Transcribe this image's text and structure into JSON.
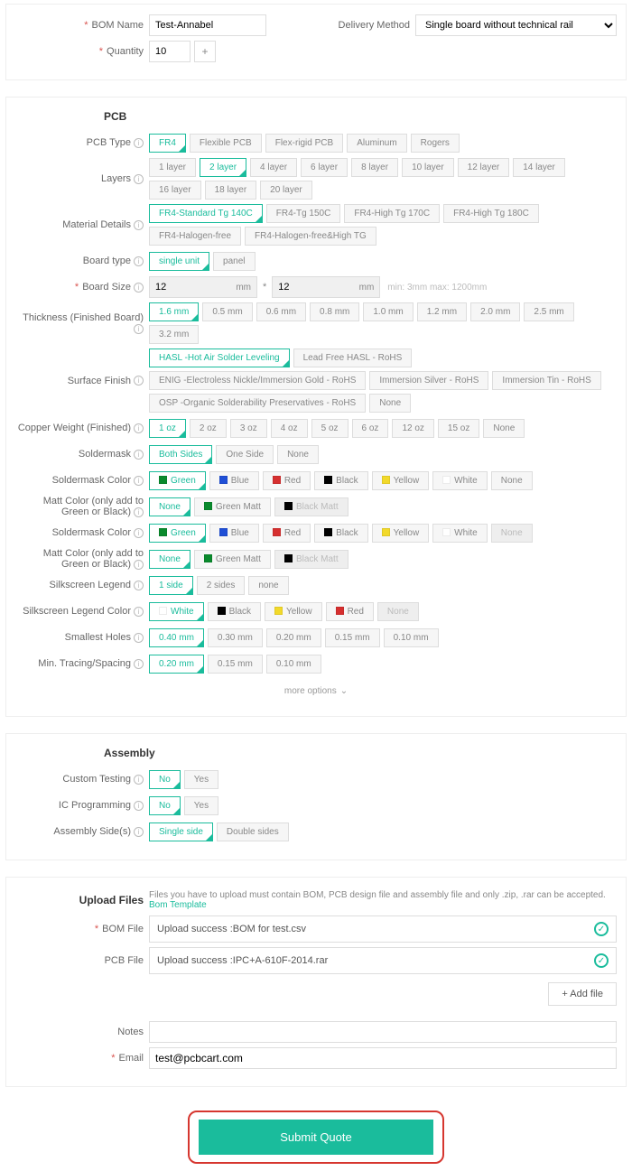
{
  "colors": {
    "accent": "#1abc9c",
    "danger": "#d6362f"
  },
  "top": {
    "bomName": {
      "label": "BOM Name",
      "required": true,
      "value": "Test-Annabel"
    },
    "quantity": {
      "label": "Quantity",
      "required": true,
      "value": "10",
      "plus": "+"
    },
    "delivery": {
      "label": "Delivery Method",
      "value": "Single board without technical rail"
    }
  },
  "pcb": {
    "heading": "PCB",
    "pcbType": {
      "label": "PCB Type",
      "selected": 0,
      "options": [
        "FR4",
        "Flexible PCB",
        "Flex-rigid PCB",
        "Aluminum",
        "Rogers"
      ]
    },
    "layers": {
      "label": "Layers",
      "selected": 1,
      "options": [
        "1 layer",
        "2 layer",
        "4 layer",
        "6 layer",
        "8 layer",
        "10 layer",
        "12 layer",
        "14 layer",
        "16 layer",
        "18 layer",
        "20 layer"
      ]
    },
    "material": {
      "label": "Material Details",
      "selected": 0,
      "options": [
        "FR4-Standard Tg 140C",
        "FR4-Tg 150C",
        "FR4-High Tg 170C",
        "FR4-High Tg 180C",
        "FR4-Halogen-free",
        "FR4-Halogen-free&High TG"
      ]
    },
    "boardType": {
      "label": "Board type",
      "selected": 0,
      "options": [
        "single unit",
        "panel"
      ]
    },
    "boardSize": {
      "label": "Board Size",
      "required": true,
      "w": "12",
      "h": "12",
      "unit": "mm",
      "sep": "*",
      "hint": "min: 3mm max: 1200mm"
    },
    "thickness": {
      "label": "Thickness (Finished Board)",
      "selected": 0,
      "options": [
        "1.6 mm",
        "0.5 mm",
        "0.6 mm",
        "0.8 mm",
        "1.0 mm",
        "1.2 mm",
        "2.0 mm",
        "2.5 mm",
        "3.2 mm"
      ]
    },
    "surface": {
      "label": "Surface Finish",
      "selected": 0,
      "options": [
        "HASL -Hot Air Solder Leveling",
        "Lead Free HASL - RoHS",
        "ENIG -Electroless Nickle/Immersion Gold - RoHS",
        "Immersion Silver - RoHS",
        "Immersion Tin - RoHS",
        "OSP -Organic Solderability Preservatives - RoHS",
        "None"
      ]
    },
    "copper": {
      "label": "Copper Weight (Finished)",
      "selected": 0,
      "options": [
        "1 oz",
        "2 oz",
        "3 oz",
        "4 oz",
        "5 oz",
        "6 oz",
        "12 oz",
        "15 oz",
        "None"
      ]
    },
    "soldermask": {
      "label": "Soldermask",
      "selected": 0,
      "options": [
        "Both Sides",
        "One Side",
        "None"
      ]
    },
    "smColor1": {
      "label": "Soldermask Color",
      "selected": 0,
      "options": [
        {
          "label": "Green",
          "swatch": "#0a8a2d"
        },
        {
          "label": "Blue",
          "swatch": "#1f4fd6"
        },
        {
          "label": "Red",
          "swatch": "#d62f2f"
        },
        {
          "label": "Black",
          "swatch": "#000000"
        },
        {
          "label": "Yellow",
          "swatch": "#f2d92a"
        },
        {
          "label": "White",
          "swatch": "#ffffff"
        },
        {
          "label": "None",
          "swatch": null
        }
      ]
    },
    "matt1": {
      "label": "Matt Color (only add to Green or Black)",
      "selected": 0,
      "options": [
        {
          "label": "None",
          "swatch": null
        },
        {
          "label": "Green Matt",
          "swatch": "#0a8a2d"
        },
        {
          "label": "Black Matt",
          "swatch": "#000000",
          "disabled": true
        }
      ]
    },
    "smColor2": {
      "label": "Soldermask Color",
      "selected": 0,
      "options": [
        {
          "label": "Green",
          "swatch": "#0a8a2d"
        },
        {
          "label": "Blue",
          "swatch": "#1f4fd6"
        },
        {
          "label": "Red",
          "swatch": "#d62f2f"
        },
        {
          "label": "Black",
          "swatch": "#000000"
        },
        {
          "label": "Yellow",
          "swatch": "#f2d92a"
        },
        {
          "label": "White",
          "swatch": "#ffffff"
        },
        {
          "label": "None",
          "swatch": null,
          "disabled": true
        }
      ]
    },
    "matt2": {
      "label": "Matt Color (only add to Green or Black)",
      "selected": 0,
      "options": [
        {
          "label": "None",
          "swatch": null
        },
        {
          "label": "Green Matt",
          "swatch": "#0a8a2d"
        },
        {
          "label": "Black Matt",
          "swatch": "#000000",
          "disabled": true
        }
      ]
    },
    "silk": {
      "label": "Silkscreen Legend",
      "selected": 0,
      "options": [
        "1 side",
        "2 sides",
        "none"
      ]
    },
    "silkColor": {
      "label": "Silkscreen Legend Color",
      "selected": 0,
      "options": [
        {
          "label": "White",
          "swatch": "#ffffff"
        },
        {
          "label": "Black",
          "swatch": "#000000"
        },
        {
          "label": "Yellow",
          "swatch": "#f2d92a"
        },
        {
          "label": "Red",
          "swatch": "#d62f2f"
        },
        {
          "label": "None",
          "swatch": null,
          "disabled": true
        }
      ]
    },
    "holes": {
      "label": "Smallest Holes",
      "selected": 0,
      "options": [
        "0.40 mm",
        "0.30 mm",
        "0.20 mm",
        "0.15 mm",
        "0.10 mm"
      ]
    },
    "tracing": {
      "label": "Min. Tracing/Spacing",
      "selected": 0,
      "options": [
        "0.20 mm",
        "0.15 mm",
        "0.10 mm"
      ]
    },
    "more": "more options"
  },
  "assembly": {
    "heading": "Assembly",
    "customTesting": {
      "label": "Custom Testing",
      "selected": 0,
      "options": [
        "No",
        "Yes"
      ]
    },
    "icProg": {
      "label": "IC Programming",
      "selected": 0,
      "options": [
        "No",
        "Yes"
      ]
    },
    "sides": {
      "label": "Assembly Side(s)",
      "selected": 0,
      "options": [
        "Single side",
        "Double sides"
      ]
    }
  },
  "upload": {
    "heading": "Upload Files",
    "note": "Files you have to upload must contain BOM, PCB design file and assembly file and only  .zip,  .rar can be accepted.",
    "templateLink": "Bom Template",
    "bom": {
      "label": "BOM File",
      "required": true,
      "value": "Upload success :BOM for test.csv"
    },
    "pcb": {
      "label": "PCB File",
      "value": "Upload success :IPC+A-610F-2014.rar"
    },
    "addFile": "+ Add file",
    "notes": {
      "label": "Notes",
      "value": ""
    },
    "email": {
      "label": "Email",
      "required": true,
      "value": "test@pcbcart.com"
    },
    "submit": "Submit Quote"
  }
}
